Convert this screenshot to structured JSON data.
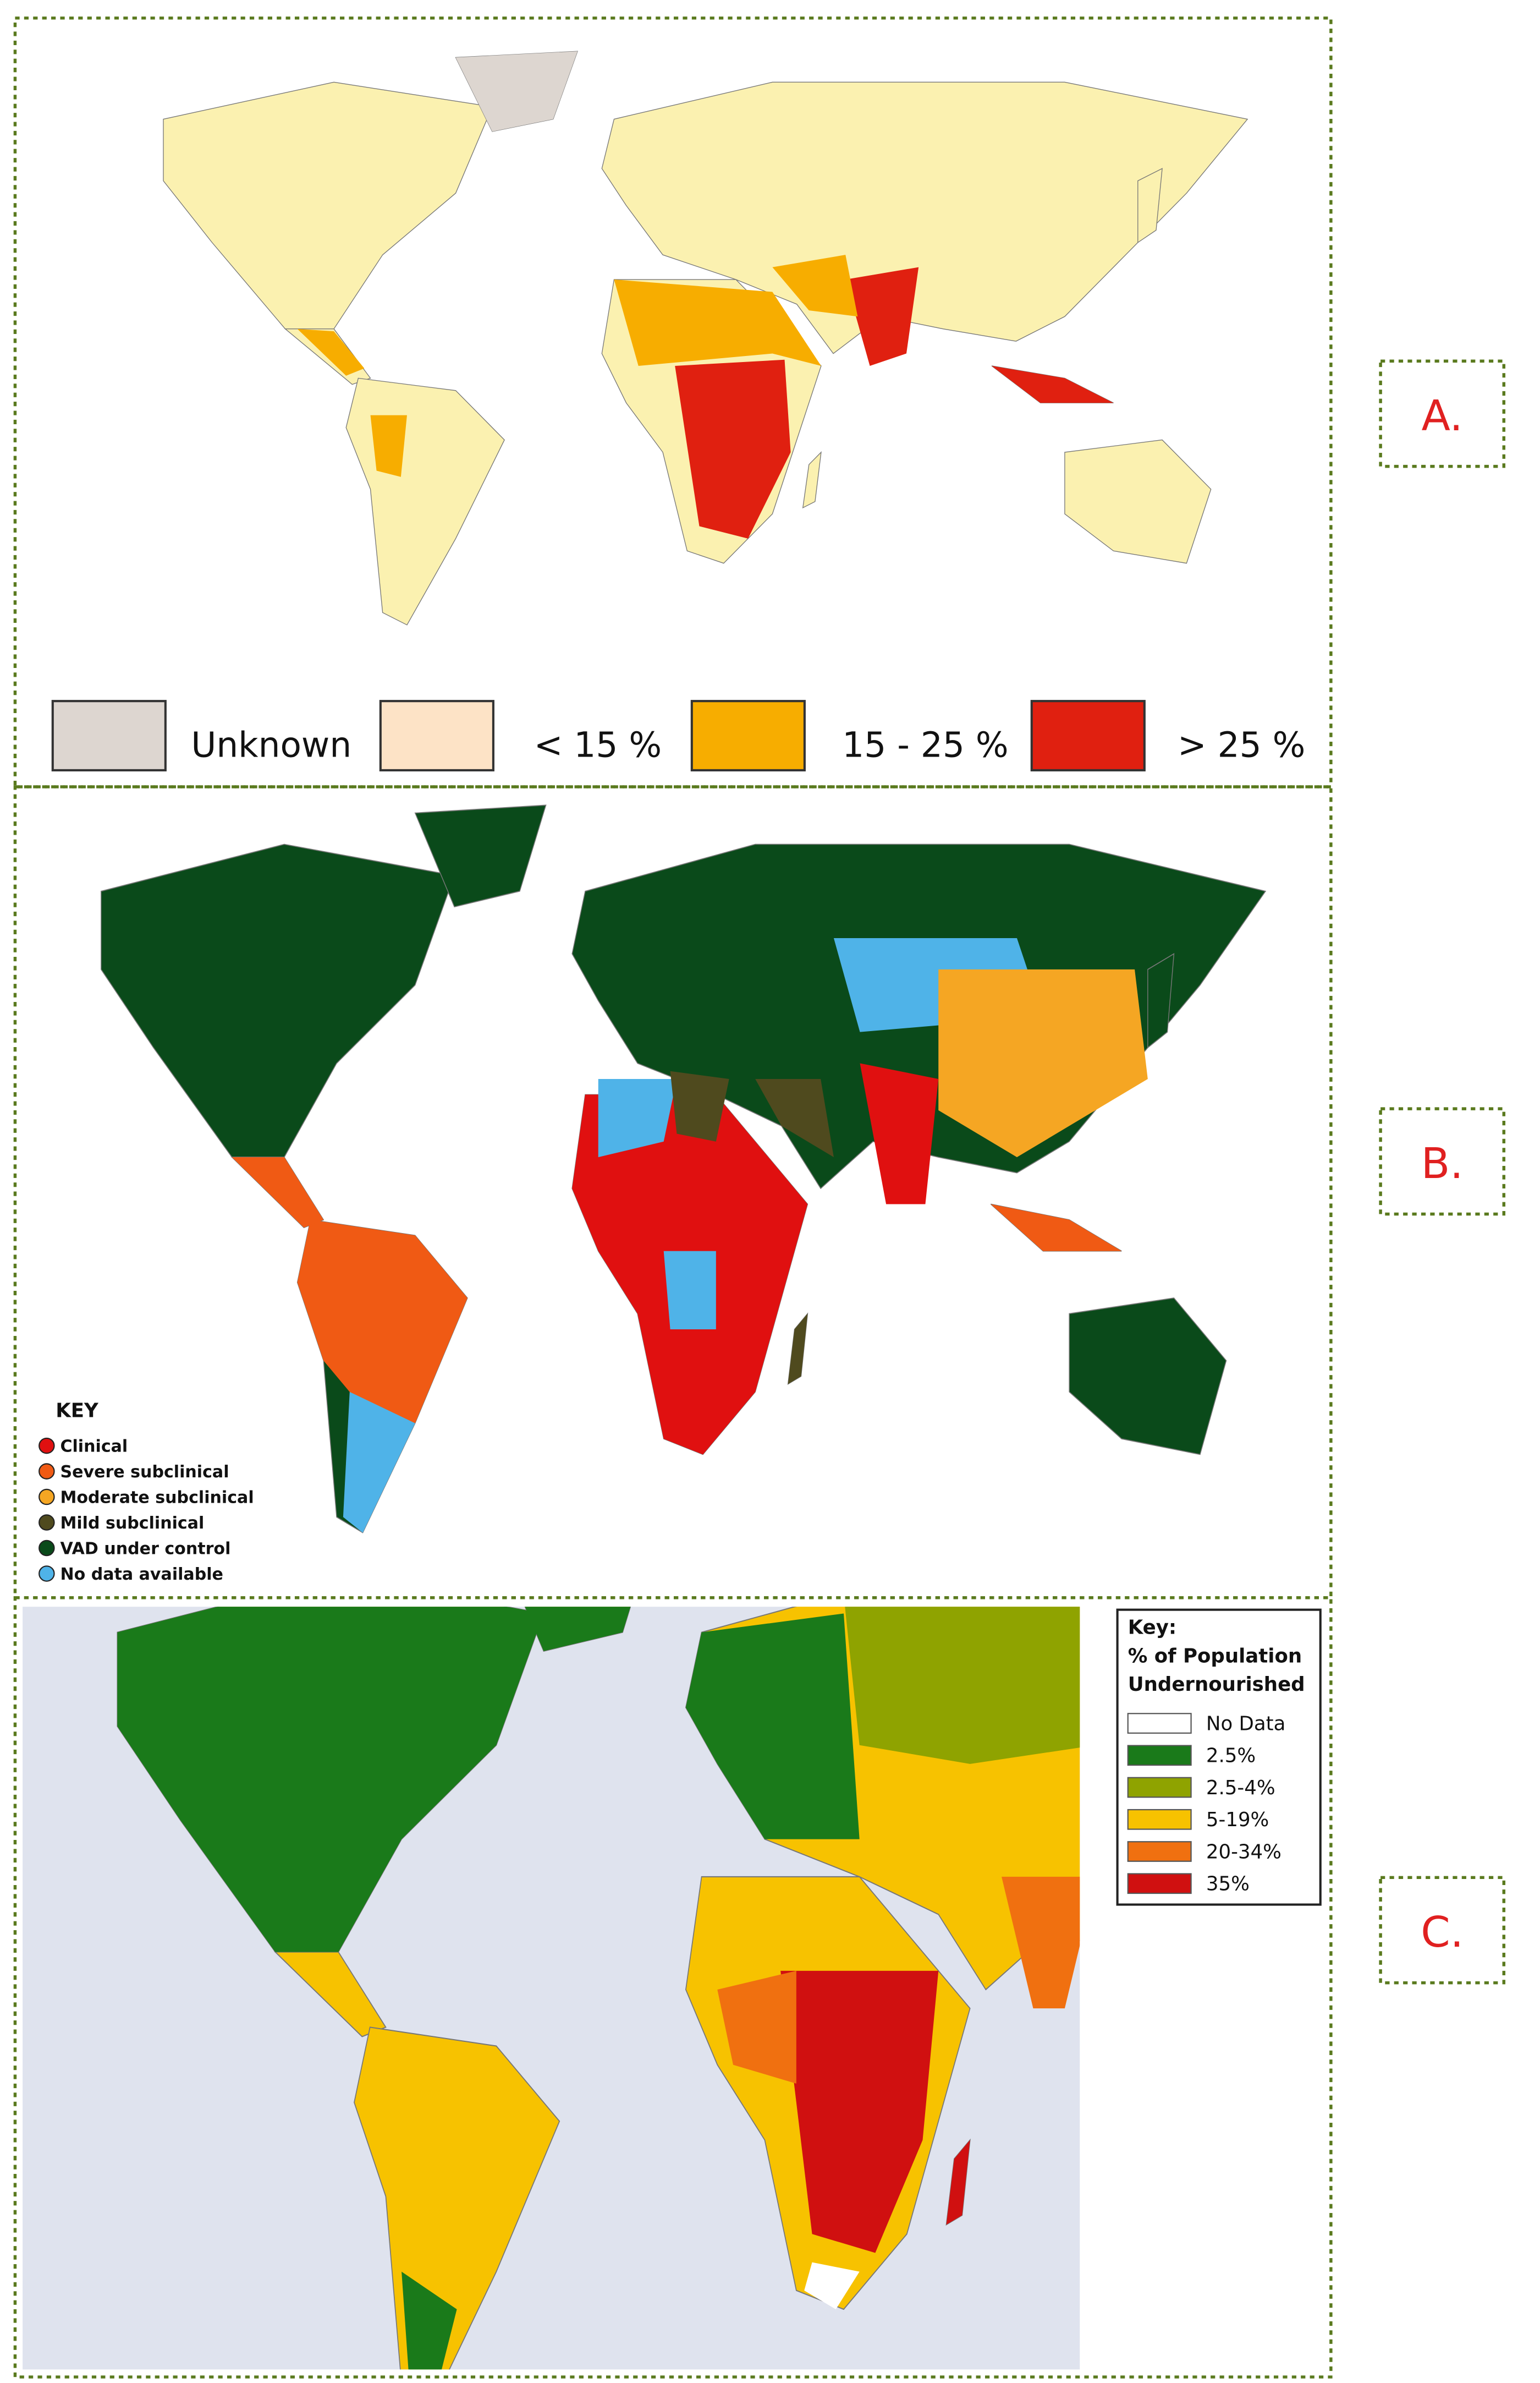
{
  "panels": [
    {
      "label": "A.",
      "legend": [
        {
          "label": "Unknown",
          "color": "#ddd6d0"
        },
        {
          "label": "< 15 %",
          "color": "#fde3c6"
        },
        {
          "label": "15 - 25 %",
          "color": "#f7ad00"
        },
        {
          "label": "> 25 %",
          "color": "#e02010"
        }
      ]
    },
    {
      "label": "B.",
      "legend_title": "KEY",
      "legend": [
        {
          "label": "Clinical",
          "color": "#e01010"
        },
        {
          "label": "Severe subclinical",
          "color": "#f05a14"
        },
        {
          "label": "Moderate subclinical",
          "color": "#f5a623"
        },
        {
          "label": "Mild subclinical",
          "color": "#4f4a1e"
        },
        {
          "label": "VAD under control",
          "color": "#0a4a1a"
        },
        {
          "label": "No data available",
          "color": "#4fb3e8"
        }
      ]
    },
    {
      "label": "C.",
      "legend_title": [
        "Key:",
        "% of Population",
        "Undernourished"
      ],
      "legend": [
        {
          "label": "No Data",
          "color": "#ffffff"
        },
        {
          "label": "2.5%",
          "color": "#1a7a1a"
        },
        {
          "label": "2.5-4%",
          "color": "#8fa300"
        },
        {
          "label": "5-19%",
          "color": "#f7c200"
        },
        {
          "label": "20-34%",
          "color": "#f07010"
        },
        {
          "label": "35%",
          "color": "#d01010"
        }
      ]
    }
  ]
}
